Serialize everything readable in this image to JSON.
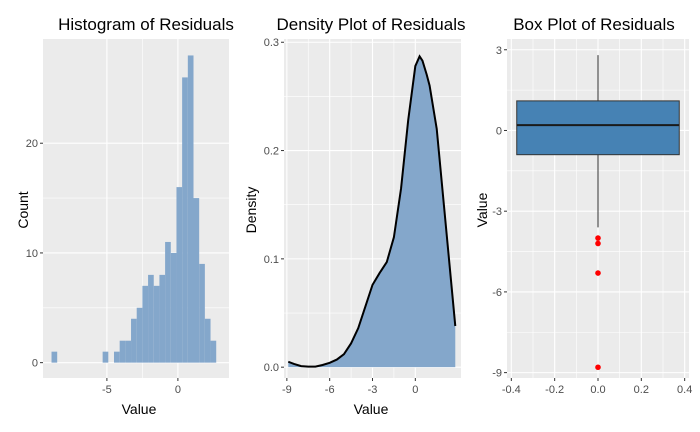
{
  "colors": {
    "panel_bg": "#ebebeb",
    "grid": "#ffffff",
    "bar_fill": "#84a7cb",
    "density_fill": "#84a7cb",
    "density_line": "#000000",
    "box_fill": "#4682b4",
    "outlier": "#ff0000"
  },
  "chart_data": [
    {
      "type": "bar",
      "title": "Histogram of Residuals",
      "xlabel": "Value",
      "ylabel": "Count",
      "xlim": [
        -9.5,
        3.6
      ],
      "ylim": [
        -1.4,
        29.5
      ],
      "xticks": [
        -5,
        0
      ],
      "yticks": [
        0,
        10,
        20
      ],
      "grid": true,
      "bins": [
        {
          "x0": -8.9,
          "x1": -8.5,
          "count": 1
        },
        {
          "x0": -5.3,
          "x1": -4.9,
          "count": 1
        },
        {
          "x0": -4.5,
          "x1": -4.1,
          "count": 1
        },
        {
          "x0": -4.1,
          "x1": -3.7,
          "count": 2
        },
        {
          "x0": -3.7,
          "x1": -3.3,
          "count": 2
        },
        {
          "x0": -3.3,
          "x1": -2.9,
          "count": 4
        },
        {
          "x0": -2.9,
          "x1": -2.5,
          "count": 5
        },
        {
          "x0": -2.5,
          "x1": -2.1,
          "count": 7
        },
        {
          "x0": -2.1,
          "x1": -1.7,
          "count": 8
        },
        {
          "x0": -1.7,
          "x1": -1.3,
          "count": 7
        },
        {
          "x0": -1.3,
          "x1": -0.9,
          "count": 8
        },
        {
          "x0": -0.9,
          "x1": -0.5,
          "count": 11
        },
        {
          "x0": -0.5,
          "x1": -0.1,
          "count": 10
        },
        {
          "x0": -0.1,
          "x1": 0.3,
          "count": 16
        },
        {
          "x0": 0.3,
          "x1": 0.7,
          "count": 26
        },
        {
          "x0": 0.7,
          "x1": 1.1,
          "count": 28
        },
        {
          "x0": 1.1,
          "x1": 1.5,
          "count": 15
        },
        {
          "x0": 1.5,
          "x1": 1.9,
          "count": 9
        },
        {
          "x0": 1.9,
          "x1": 2.3,
          "count": 4
        },
        {
          "x0": 2.3,
          "x1": 2.7,
          "count": 2
        }
      ]
    },
    {
      "type": "area",
      "title": "Density Plot of Residuals",
      "xlabel": "Value",
      "ylabel": "Density",
      "xlim": [
        -9.2,
        3.2
      ],
      "ylim": [
        -0.01,
        0.303
      ],
      "xticks": [
        -9,
        -6,
        -3,
        0
      ],
      "xtick_labels": [
        "-9",
        "-6",
        "-3",
        "0"
      ],
      "yticks": [
        0.0,
        0.1,
        0.2,
        0.3
      ],
      "ytick_labels": [
        "0.0",
        "0.1",
        "0.2",
        "0.3"
      ],
      "grid": true,
      "x": [
        -8.9,
        -8.5,
        -8.0,
        -7.5,
        -7.0,
        -6.5,
        -6.0,
        -5.5,
        -5.0,
        -4.5,
        -4.0,
        -3.5,
        -3.0,
        -2.5,
        -2.0,
        -1.5,
        -1.0,
        -0.5,
        0.0,
        0.3,
        0.5,
        0.8,
        1.0,
        1.5,
        2.0,
        2.5,
        2.8
      ],
      "y": [
        0.005,
        0.003,
        0.001,
        0.0005,
        0.0005,
        0.002,
        0.004,
        0.007,
        0.012,
        0.022,
        0.036,
        0.056,
        0.076,
        0.087,
        0.097,
        0.12,
        0.165,
        0.228,
        0.278,
        0.287,
        0.283,
        0.27,
        0.26,
        0.22,
        0.15,
        0.08,
        0.038
      ]
    },
    {
      "type": "box",
      "title": "Box Plot of Residuals",
      "xlabel": "",
      "ylabel": "Value",
      "xlim": [
        -0.42,
        0.42
      ],
      "ylim": [
        -9.2,
        3.4
      ],
      "xticks": [
        -0.4,
        -0.2,
        0.0,
        0.2,
        0.4
      ],
      "xtick_labels": [
        "-0.4",
        "-0.2",
        "0.0",
        "0.2",
        "0.4"
      ],
      "yticks": [
        3,
        0,
        -3,
        -6,
        -9
      ],
      "grid": true,
      "box": {
        "x_left": -0.375,
        "x_right": 0.375,
        "q1": -0.9,
        "median": 0.2,
        "q3": 1.1,
        "whisker_low": -3.6,
        "whisker_high": 2.8
      },
      "outliers": [
        -4.0,
        -4.2,
        -5.3,
        -8.8
      ]
    }
  ]
}
